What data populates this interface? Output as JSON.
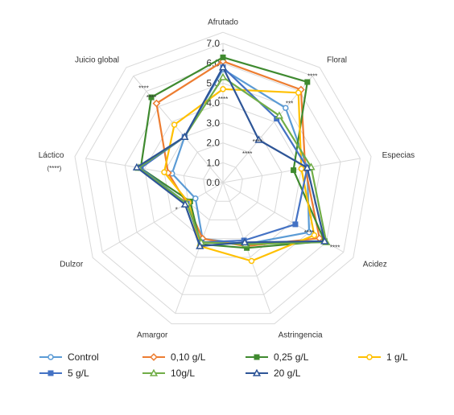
{
  "chart_data": {
    "type": "radar",
    "axes": [
      "Afrutado",
      "Floral",
      "Especias",
      "Acidez",
      "Astringencia",
      "Amargor",
      "Dulzor",
      "Láctico",
      "Juicio global"
    ],
    "axis_sublabels": {
      "Láctico": "(****)"
    },
    "r_ticks": [
      "0.0",
      "1.0",
      "2.0",
      "3.0",
      "4.0",
      "5.0",
      "6.0",
      "7.0"
    ],
    "rlim": [
      0,
      7
    ],
    "grid": true,
    "legend_position": "bottom",
    "series": [
      {
        "name": "Control",
        "color": "#5b9bd5",
        "marker": "circle",
        "values": [
          5.7,
          4.9,
          4.3,
          5.0,
          3.3,
          3.0,
          1.6,
          2.6,
          3.0
        ]
      },
      {
        "name": "0,10 g/L",
        "color": "#ed7d31",
        "marker": "diamond",
        "values": [
          6.1,
          6.1,
          4.2,
          5.6,
          3.4,
          3.0,
          2.1,
          2.8,
          5.2
        ]
      },
      {
        "name": "0,25 g/L",
        "color": "#3f8a2f",
        "marker": "square",
        "values": [
          6.3,
          6.6,
          3.6,
          5.9,
          3.5,
          3.3,
          1.9,
          4.2,
          5.6
        ]
      },
      {
        "name": "1 g/L",
        "color": "#ffc000",
        "marker": "circle",
        "values": [
          4.7,
          5.9,
          4.0,
          5.3,
          4.2,
          3.4,
          2.0,
          3.0,
          3.8
        ]
      },
      {
        "name": "5 g/L",
        "color": "#4472c4",
        "marker": "square",
        "values": [
          5.8,
          4.2,
          4.3,
          4.2,
          3.1,
          3.2,
          2.1,
          4.2,
          3.0
        ]
      },
      {
        "name": "10g/L",
        "color": "#70ad47",
        "marker": "triangle",
        "values": [
          5.3,
          4.4,
          4.5,
          6.0,
          3.3,
          3.2,
          2.1,
          4.3,
          3.0
        ]
      },
      {
        "name": "20 g/L",
        "color": "#2e5597",
        "marker": "triangle",
        "values": [
          5.8,
          2.8,
          4.3,
          5.9,
          3.2,
          3.4,
          2.2,
          4.4,
          3.0
        ]
      }
    ],
    "annotations": [
      {
        "axis": "Afrutado",
        "text": "*",
        "r": 6.6
      },
      {
        "axis": "Afrutado",
        "text": "****",
        "r": 4.2
      },
      {
        "axis": "Floral",
        "text": "****",
        "r": 7.0
      },
      {
        "axis": "Floral",
        "text": "***",
        "r": 5.2
      },
      {
        "axis": "Floral",
        "text": "****",
        "r": 2.7
      },
      {
        "axis": "Floral",
        "text": "****",
        "r": 1.9
      },
      {
        "axis": "Acidez",
        "text": "****",
        "r": 5.0
      },
      {
        "axis": "Acidez",
        "text": "****",
        "r": 6.5
      },
      {
        "axis": "Dulzor",
        "text": "*",
        "r": 2.7
      },
      {
        "axis": "Juicio global",
        "text": "****",
        "r": 6.2
      },
      {
        "axis": "Juicio global",
        "text": "****",
        "r": 5.6
      }
    ]
  }
}
